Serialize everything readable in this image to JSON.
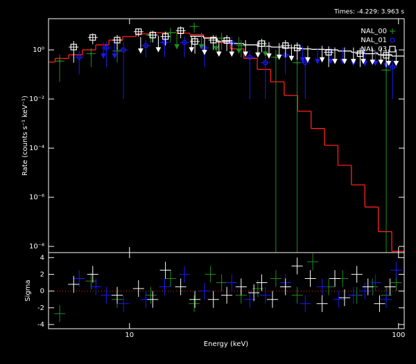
{
  "chart_data": [
    {
      "type": "scatter",
      "annotation": "Times: -4.229: 3.963 s",
      "ylabel": "Rate (counts s⁻¹ keV⁻¹)",
      "xlim": [
        5,
        105
      ],
      "ylim": [
        5.6e-09,
        18.6
      ],
      "log_x": true,
      "log_y": true,
      "yticks": [
        {
          "value": 1,
          "label": "10⁰"
        },
        {
          "value": 0.01,
          "label": "10⁻²"
        },
        {
          "value": 0.0001,
          "label": "10⁻⁴"
        },
        {
          "value": 1e-06,
          "label": "10⁻⁶"
        },
        {
          "value": 1e-08,
          "label": "10⁻⁸"
        }
      ],
      "legend": "upper right",
      "series": [
        {
          "name": "NAL_00",
          "color": "#1f8f1f",
          "marker": "plus",
          "x": [
            5.5,
            7.2,
            9.0,
            12.0,
            14.2,
            17.4,
            22,
            26,
            35,
            42,
            90
          ],
          "values": [
            0.35,
            0.7,
            0.9,
            4,
            5,
            9,
            3,
            1.5,
            0.5,
            0.3,
            0.15
          ],
          "yerr": [
            0.3,
            0.5,
            0.6,
            2,
            3,
            4,
            2,
            1,
            0.5,
            0.3,
            0.15
          ],
          "ul_x": [
            15,
            18.5,
            21,
            25.5,
            32
          ],
          "ul_values": [
            1.2,
            1.2,
            1.0,
            0.8,
            0.6
          ]
        },
        {
          "name": "NAL_01",
          "color": "#1a1aff",
          "marker": "circle",
          "x": [
            6.5,
            8.2,
            9.5,
            11.5,
            13.5,
            16,
            19,
            24,
            28,
            32,
            38,
            45,
            95
          ],
          "values": [
            0.5,
            1.2,
            1,
            1.5,
            2,
            2,
            1.2,
            2,
            0.5,
            0.3,
            0.6,
            0.3,
            0.2
          ],
          "yerr": [
            0.4,
            1,
            0.99,
            1,
            1.5,
            1.5,
            1,
            1.5,
            0.49,
            0.29,
            0.5,
            0.29,
            0.19
          ],
          "ul_x": [
            8,
            8.8,
            44,
            50,
            56,
            62,
            68,
            75,
            82,
            90
          ],
          "ul_values": [
            0.5,
            0.5,
            0.35,
            0.3,
            0.3,
            0.3,
            0.25,
            0.25,
            0.25,
            0.2
          ]
        },
        {
          "name": "NAL_03",
          "color": "#ffffff",
          "marker": "square",
          "x": [
            6.2,
            7.3,
            9.0,
            10.8,
            12.2,
            13.6,
            15.5,
            17.5,
            20.5,
            23,
            31,
            38,
            42,
            55,
            72,
            90
          ],
          "values": [
            1.3,
            3.2,
            2.5,
            5.5,
            4,
            3.5,
            6,
            2.2,
            2.5,
            2.4,
            1.8,
            1.5,
            1.2,
            0.8,
            0.7,
            0.6
          ],
          "yerr": [
            1,
            1.5,
            1.5,
            2,
            2,
            2,
            3,
            1.5,
            1.5,
            1.5,
            1,
            1,
            0.8,
            0.6,
            0.5,
            0.4
          ],
          "ul_x": [
            11,
            12.8,
            17,
            19,
            21.5,
            24,
            27,
            30,
            33,
            36,
            40,
            46,
            52,
            58,
            63,
            68,
            74,
            80,
            86,
            92,
            98
          ],
          "ul_values": [
            0.8,
            0.9,
            0.9,
            0.7,
            0.6,
            0.6,
            0.6,
            0.55,
            0.5,
            0.45,
            0.4,
            0.35,
            0.35,
            0.3,
            0.3,
            0.3,
            0.3,
            0.28,
            0.28,
            0.25,
            0.25
          ]
        }
      ],
      "models": [
        {
          "color": "#ff2020",
          "x": [
            5,
            5.6,
            6.3,
            7.1,
            7.9,
            8.9,
            10,
            11.2,
            12.6,
            14.1,
            15.8,
            17.8,
            20,
            22.4,
            25.1,
            28.2,
            31.6,
            35.5,
            39.8,
            44.7,
            50.1,
            56.2,
            63.1,
            70.8,
            79.4,
            89.1,
            100
          ],
          "values": [
            0.32,
            0.45,
            0.63,
            1,
            1.6,
            2.5,
            3.5,
            4.5,
            5,
            5,
            4.8,
            4.2,
            3.2,
            2,
            1.1,
            0.45,
            0.16,
            0.05,
            0.014,
            0.0032,
            0.00063,
            0.00013,
            2e-05,
            3.2e-06,
            4e-07,
            4e-08,
            6.3e-09
          ]
        },
        {
          "color": "#ffffff",
          "x": [
            17.8,
            20,
            22.4,
            25.1,
            28.2,
            31.6,
            35.5,
            39.8,
            44.7,
            50.1,
            56.2,
            63.1,
            70.8,
            79.4,
            89.1,
            100
          ],
          "values": [
            3.6,
            3,
            2.2,
            1.8,
            1.6,
            1.4,
            1.3,
            1.2,
            1.1,
            1.05,
            1,
            0.9,
            0.8,
            0.7,
            0.63,
            0.56
          ]
        }
      ]
    },
    {
      "type": "residual",
      "xlabel": "Energy (keV)",
      "ylabel": "Sigma",
      "xlim": [
        5,
        105
      ],
      "ylim": [
        -4.5,
        4.6
      ],
      "log_x": true,
      "xticks": [
        10,
        100
      ],
      "yticks": [
        -4,
        -2,
        0,
        2,
        4
      ],
      "yerr": 1,
      "series": [
        {
          "color": "#1f8f1f",
          "x": [
            5.5,
            7.2,
            9,
            12,
            14.2,
            17.4,
            20,
            22,
            26,
            30,
            35,
            42,
            48,
            55,
            62,
            70,
            80,
            90,
            98
          ],
          "values": [
            -2.7,
            1.2,
            -1,
            -0.5,
            1.5,
            -1.5,
            2,
            1,
            -0.5,
            0.3,
            1.5,
            -0.5,
            3.5,
            0.5,
            1.5,
            -0.5,
            0.5,
            -0.5,
            1
          ]
        },
        {
          "color": "#1a1aff",
          "x": [
            6.5,
            7.5,
            8.2,
            9.5,
            11.5,
            13.5,
            16,
            19,
            24,
            28,
            32,
            38,
            45,
            52,
            60,
            68,
            75,
            82,
            90,
            98
          ],
          "values": [
            1.5,
            0.5,
            -0.5,
            -1.5,
            -1,
            0.5,
            2,
            0,
            1,
            -1,
            -0.5,
            1,
            -1.5,
            0.5,
            -1,
            -0.5,
            0,
            1,
            -1,
            2.5
          ]
        },
        {
          "color": "#ffffff",
          "x": [
            6.2,
            7.3,
            9,
            10.8,
            12.2,
            13.6,
            15.5,
            17.5,
            20.5,
            23,
            26,
            29,
            31,
            34,
            38,
            42,
            47,
            52,
            58,
            63,
            70,
            77,
            85,
            93
          ],
          "values": [
            0.8,
            2,
            -0.5,
            0.3,
            -1,
            2.5,
            0.5,
            -1,
            -1,
            -0.5,
            0.5,
            -0.2,
            1,
            -1,
            0.5,
            3,
            1.5,
            -1.5,
            1.5,
            -0.8,
            2,
            0.5,
            -1.5,
            0.5
          ]
        }
      ]
    }
  ]
}
